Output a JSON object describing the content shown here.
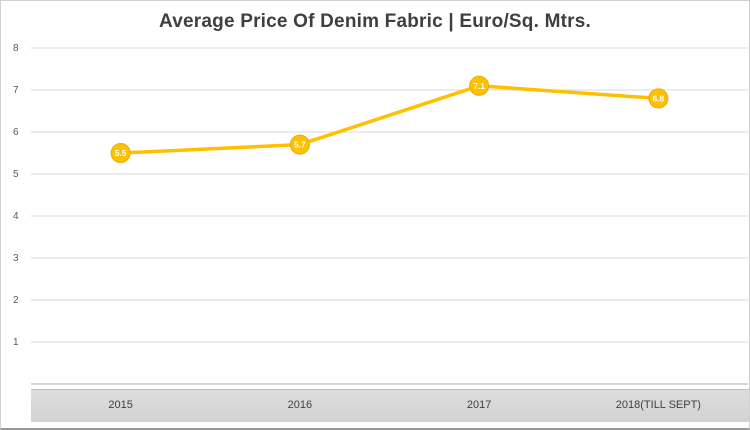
{
  "title": "Average Price Of Denim Fabric | Euro/Sq. Mtrs.",
  "colors": {
    "line": "#FFC000",
    "marker_fill": "#FFC000",
    "marker_stroke": "#E8AC00",
    "marker_label": "#FFFFFF",
    "gridline": "#D9D9D9",
    "axis": "#BFBFBF",
    "tick_text": "#595959",
    "band_text": "#404040"
  },
  "chart_data": {
    "type": "line",
    "title": "Average Price Of Denim Fabric | Euro/Sq. Mtrs.",
    "categories": [
      "2015",
      "2016",
      "2017",
      "2018(TILL SEPT)"
    ],
    "values": [
      5.5,
      5.7,
      7.1,
      6.8
    ],
    "data_labels": [
      "5.5",
      "5.7",
      "7.1",
      "6.8"
    ],
    "xlabel": "",
    "ylabel": "",
    "ylim": [
      0,
      8
    ],
    "yticks": [
      1,
      2,
      3,
      4,
      5,
      6,
      7,
      8
    ],
    "grid": "horizontal",
    "legend": "none",
    "marker": "circle",
    "data_labels_position": "inside-marker"
  }
}
